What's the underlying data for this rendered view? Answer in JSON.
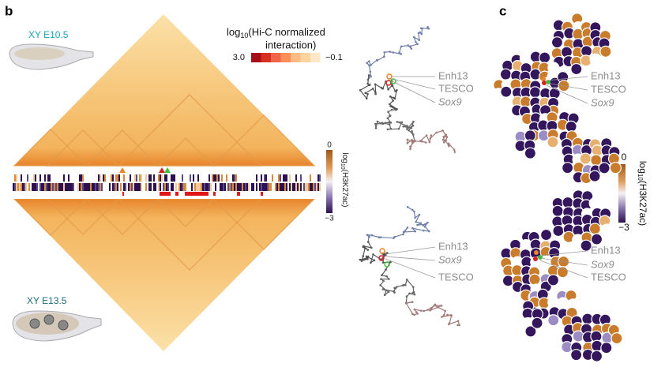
{
  "panel_b": {
    "label": "b",
    "top_sample": "XY E10.5",
    "bottom_sample": "XY E13.5",
    "hic_colorbar": {
      "title_prefix": "log",
      "title_sub": "10",
      "title_rest": "(Hi-C normalized",
      "title_line2": "interaction)",
      "max_label": "3.0",
      "min_label": "−0.1"
    },
    "h3k27ac_colorbar": {
      "title_prefix": "log",
      "title_sub": "10",
      "title_rest": "(H3K27ac)",
      "max_label": "0",
      "min_label": "−3"
    },
    "top_structure_labels": [
      "Enh13",
      "TESCO",
      "Sox9"
    ],
    "bottom_structure_labels": [
      "Enh13",
      "Sox9",
      "TESCO"
    ]
  },
  "panel_c": {
    "label": "c",
    "h3k27ac_colorbar": {
      "title_prefix": "log",
      "title_sub": "10",
      "title_rest": "(H3K27ac)",
      "max_label": "0",
      "min_label": "−3"
    },
    "top_structure_labels": [
      "Enh13",
      "TESCO",
      "Sox9"
    ],
    "bottom_structure_labels": [
      "Enh13",
      "Sox9",
      "TESCO"
    ]
  }
}
